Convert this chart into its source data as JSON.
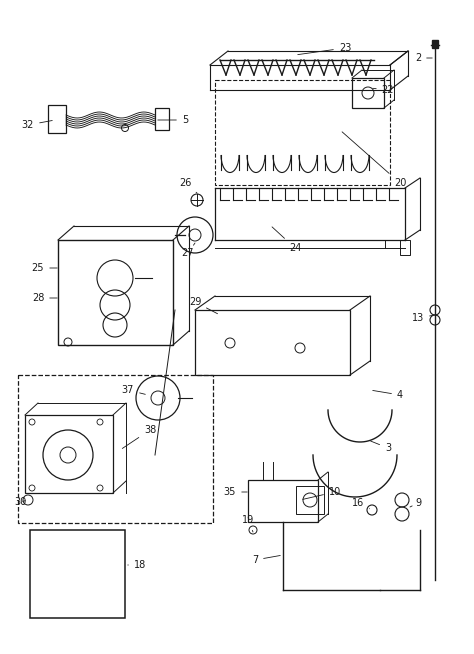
{
  "bg_color": "#ffffff",
  "line_color": "#1a1a1a",
  "figw": 4.74,
  "figh": 6.54,
  "dpi": 100
}
